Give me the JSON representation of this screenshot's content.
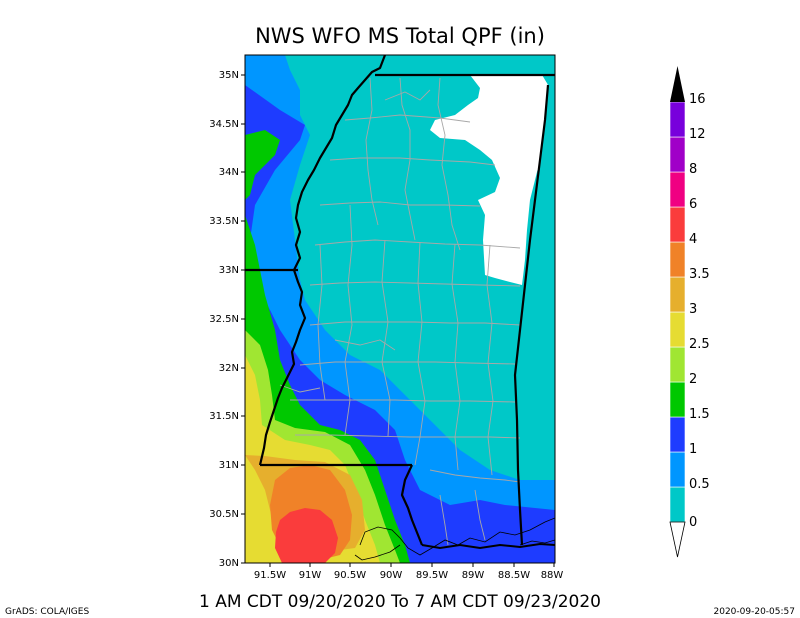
{
  "title": "NWS WFO MS Total QPF (in)",
  "valid_period": "1 AM CDT 09/20/2020 To 7 AM CDT 09/23/2020",
  "credit": "GrADS: COLA/IGES",
  "timestamp": "2020-09-20-05:57",
  "map": {
    "lat_ticks": [
      "35N",
      "34.5N",
      "34N",
      "33.5N",
      "33N",
      "32.5N",
      "32N",
      "31.5N",
      "31N",
      "30.5N",
      "30N"
    ],
    "lon_ticks": [
      "91.5W",
      "91W",
      "90.5W",
      "90W",
      "89.5W",
      "89W",
      "88.5W",
      "88W"
    ],
    "lat_range": [
      30,
      35
    ],
    "lon_range": [
      -91.8,
      -88
    ]
  },
  "colorbar": {
    "levels": [
      "0",
      "0.5",
      "1",
      "1.5",
      "2",
      "2.5",
      "3",
      "3.5",
      "4",
      "6",
      "8",
      "12",
      "16"
    ],
    "colors": [
      "#00c8c8",
      "#0096ff",
      "#1e3cff",
      "#00c800",
      "#a0e632",
      "#e6dc32",
      "#e6af2d",
      "#f08228",
      "#fa3c3c",
      "#f00082",
      "#a000c8",
      "#7800dc"
    ],
    "overflow_color": "#000000"
  }
}
